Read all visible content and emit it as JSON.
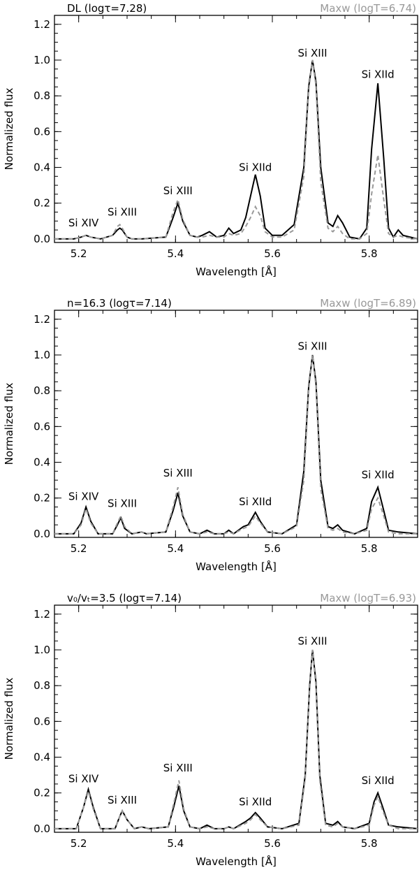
{
  "chart_data": [
    {
      "type": "line",
      "title_left": "DL (logτ=7.28)",
      "title_right": "Maxw (logT=6.74)",
      "xlabel": "Wavelength [Å]",
      "ylabel": "Normalized flux",
      "xlim": [
        5.15,
        5.9
      ],
      "ylim": [
        -0.02,
        1.25
      ],
      "xticks": [
        5.2,
        5.4,
        5.6,
        5.8
      ],
      "xtick_labels": [
        "5.2",
        "5.4",
        "5.6",
        "5.8"
      ],
      "yticks": [
        0.0,
        0.2,
        0.4,
        0.6,
        0.8,
        1.0,
        1.2
      ],
      "ytick_labels": [
        "0.0",
        "0.2",
        "0.4",
        "0.6",
        "0.8",
        "1.0",
        "1.2"
      ],
      "line_labels": [
        {
          "text": "Si XIV",
          "x": 5.21,
          "y": 0.07
        },
        {
          "text": "Si XIII",
          "x": 5.29,
          "y": 0.13
        },
        {
          "text": "Si XIII",
          "x": 5.405,
          "y": 0.25
        },
        {
          "text": "Si XIId",
          "x": 5.565,
          "y": 0.38
        },
        {
          "text": "Si XIII",
          "x": 5.683,
          "y": 1.02
        },
        {
          "text": "Si XIId",
          "x": 5.818,
          "y": 0.9
        }
      ],
      "series": [
        {
          "style": "solid",
          "x": [
            5.15,
            5.19,
            5.205,
            5.215,
            5.225,
            5.245,
            5.27,
            5.28,
            5.285,
            5.29,
            5.3,
            5.31,
            5.33,
            5.38,
            5.395,
            5.405,
            5.415,
            5.43,
            5.445,
            5.455,
            5.47,
            5.485,
            5.5,
            5.51,
            5.52,
            5.535,
            5.545,
            5.555,
            5.565,
            5.575,
            5.585,
            5.6,
            5.62,
            5.645,
            5.665,
            5.675,
            5.683,
            5.69,
            5.7,
            5.715,
            5.725,
            5.735,
            5.745,
            5.76,
            5.78,
            5.795,
            5.805,
            5.818,
            5.83,
            5.84,
            5.85,
            5.86,
            5.87,
            5.9
          ],
          "y": [
            0.0,
            0.0,
            0.01,
            0.02,
            0.01,
            0.0,
            0.02,
            0.05,
            0.06,
            0.05,
            0.01,
            0.0,
            0.0,
            0.01,
            0.12,
            0.2,
            0.1,
            0.02,
            0.01,
            0.02,
            0.04,
            0.01,
            0.02,
            0.06,
            0.03,
            0.05,
            0.12,
            0.24,
            0.36,
            0.24,
            0.06,
            0.02,
            0.02,
            0.08,
            0.4,
            0.85,
            1.0,
            0.88,
            0.4,
            0.09,
            0.07,
            0.13,
            0.09,
            0.01,
            0.0,
            0.06,
            0.5,
            0.87,
            0.45,
            0.06,
            0.01,
            0.05,
            0.02,
            0.0
          ]
        },
        {
          "style": "dashed",
          "x": [
            5.15,
            5.19,
            5.205,
            5.215,
            5.225,
            5.245,
            5.27,
            5.28,
            5.285,
            5.29,
            5.3,
            5.31,
            5.33,
            5.38,
            5.395,
            5.405,
            5.415,
            5.43,
            5.445,
            5.455,
            5.47,
            5.485,
            5.5,
            5.51,
            5.52,
            5.535,
            5.545,
            5.555,
            5.565,
            5.575,
            5.585,
            5.6,
            5.62,
            5.645,
            5.665,
            5.675,
            5.683,
            5.69,
            5.7,
            5.715,
            5.725,
            5.735,
            5.745,
            5.76,
            5.78,
            5.795,
            5.805,
            5.818,
            5.83,
            5.84,
            5.85,
            5.86,
            5.87,
            5.9
          ],
          "y": [
            0.0,
            0.0,
            0.01,
            0.02,
            0.01,
            0.0,
            0.02,
            0.07,
            0.08,
            0.06,
            0.01,
            0.0,
            0.0,
            0.01,
            0.15,
            0.22,
            0.11,
            0.02,
            0.01,
            0.01,
            0.02,
            0.01,
            0.01,
            0.03,
            0.02,
            0.03,
            0.07,
            0.12,
            0.18,
            0.13,
            0.04,
            0.01,
            0.01,
            0.05,
            0.35,
            0.83,
            1.0,
            0.86,
            0.32,
            0.06,
            0.04,
            0.07,
            0.03,
            0.0,
            0.0,
            0.03,
            0.25,
            0.47,
            0.22,
            0.03,
            0.01,
            0.02,
            0.01,
            0.0
          ]
        }
      ]
    },
    {
      "type": "line",
      "title_left": "n=16.3 (logτ=7.14)",
      "title_right": "Maxw (logT=6.89)",
      "xlabel": "Wavelength [Å]",
      "ylabel": "Normalized flux",
      "xlim": [
        5.15,
        5.9
      ],
      "ylim": [
        -0.02,
        1.25
      ],
      "xticks": [
        5.2,
        5.4,
        5.6,
        5.8
      ],
      "xtick_labels": [
        "5.2",
        "5.4",
        "5.6",
        "5.8"
      ],
      "yticks": [
        0.0,
        0.2,
        0.4,
        0.6,
        0.8,
        1.0,
        1.2
      ],
      "ytick_labels": [
        "0.0",
        "0.2",
        "0.4",
        "0.6",
        "0.8",
        "1.0",
        "1.2"
      ],
      "line_labels": [
        {
          "text": "Si XIV",
          "x": 5.21,
          "y": 0.19
        },
        {
          "text": "Si XIII",
          "x": 5.29,
          "y": 0.15
        },
        {
          "text": "Si XIII",
          "x": 5.405,
          "y": 0.32
        },
        {
          "text": "Si XIId",
          "x": 5.565,
          "y": 0.16
        },
        {
          "text": "Si XIII",
          "x": 5.683,
          "y": 1.03
        },
        {
          "text": "Si XIId",
          "x": 5.818,
          "y": 0.31
        }
      ],
      "series": [
        {
          "style": "solid",
          "x": [
            5.15,
            5.19,
            5.205,
            5.215,
            5.225,
            5.24,
            5.27,
            5.28,
            5.287,
            5.295,
            5.31,
            5.33,
            5.34,
            5.38,
            5.395,
            5.405,
            5.415,
            5.43,
            5.45,
            5.465,
            5.48,
            5.5,
            5.51,
            5.52,
            5.54,
            5.55,
            5.565,
            5.575,
            5.59,
            5.62,
            5.65,
            5.665,
            5.675,
            5.683,
            5.69,
            5.7,
            5.715,
            5.725,
            5.735,
            5.745,
            5.77,
            5.795,
            5.805,
            5.818,
            5.83,
            5.84,
            5.86,
            5.9
          ],
          "y": [
            0.0,
            0.0,
            0.06,
            0.15,
            0.07,
            0.0,
            0.0,
            0.05,
            0.09,
            0.03,
            0.0,
            0.01,
            0.0,
            0.01,
            0.13,
            0.23,
            0.1,
            0.01,
            0.0,
            0.02,
            0.0,
            0.0,
            0.02,
            0.0,
            0.04,
            0.05,
            0.12,
            0.07,
            0.01,
            0.0,
            0.05,
            0.35,
            0.82,
            1.0,
            0.85,
            0.3,
            0.04,
            0.03,
            0.05,
            0.02,
            0.0,
            0.03,
            0.18,
            0.26,
            0.13,
            0.02,
            0.01,
            0.0
          ]
        },
        {
          "style": "dashed",
          "x": [
            5.15,
            5.19,
            5.205,
            5.215,
            5.225,
            5.24,
            5.27,
            5.28,
            5.287,
            5.295,
            5.31,
            5.33,
            5.34,
            5.38,
            5.395,
            5.405,
            5.415,
            5.43,
            5.45,
            5.465,
            5.48,
            5.5,
            5.51,
            5.52,
            5.54,
            5.55,
            5.565,
            5.575,
            5.59,
            5.62,
            5.65,
            5.665,
            5.675,
            5.683,
            5.69,
            5.7,
            5.715,
            5.725,
            5.735,
            5.745,
            5.77,
            5.795,
            5.805,
            5.818,
            5.83,
            5.84,
            5.86,
            5.9
          ],
          "y": [
            0.0,
            0.0,
            0.05,
            0.14,
            0.06,
            0.0,
            0.0,
            0.06,
            0.1,
            0.04,
            0.0,
            0.01,
            0.0,
            0.01,
            0.15,
            0.26,
            0.11,
            0.01,
            0.0,
            0.01,
            0.0,
            0.0,
            0.01,
            0.0,
            0.03,
            0.04,
            0.1,
            0.06,
            0.01,
            0.0,
            0.04,
            0.3,
            0.8,
            1.0,
            0.83,
            0.25,
            0.03,
            0.02,
            0.03,
            0.01,
            0.0,
            0.02,
            0.14,
            0.2,
            0.1,
            0.01,
            0.0,
            0.0
          ]
        }
      ]
    },
    {
      "type": "line",
      "title_left": "v₀/vₜ=3.5 (logτ=7.14)",
      "title_right": "Maxw (logT=6.93)",
      "xlabel": "Wavelength [Å]",
      "ylabel": "Normalized flux",
      "xlim": [
        5.15,
        5.9
      ],
      "ylim": [
        -0.02,
        1.25
      ],
      "xticks": [
        5.2,
        5.4,
        5.6,
        5.8
      ],
      "xtick_labels": [
        "5.2",
        "5.4",
        "5.6",
        "5.8"
      ],
      "yticks": [
        0.0,
        0.2,
        0.4,
        0.6,
        0.8,
        1.0,
        1.2
      ],
      "ytick_labels": [
        "0.0",
        "0.2",
        "0.4",
        "0.6",
        "0.8",
        "1.0",
        "1.2"
      ],
      "line_labels": [
        {
          "text": "Si XIV",
          "x": 5.21,
          "y": 0.26
        },
        {
          "text": "Si XIII",
          "x": 5.29,
          "y": 0.14
        },
        {
          "text": "Si XIII",
          "x": 5.405,
          "y": 0.32
        },
        {
          "text": "Si XIId",
          "x": 5.565,
          "y": 0.13
        },
        {
          "text": "Si XIII",
          "x": 5.683,
          "y": 1.03
        },
        {
          "text": "Si XIId",
          "x": 5.818,
          "y": 0.25
        }
      ],
      "series": [
        {
          "style": "solid",
          "x": [
            5.15,
            5.195,
            5.21,
            5.22,
            5.23,
            5.245,
            5.275,
            5.285,
            5.29,
            5.3,
            5.315,
            5.33,
            5.345,
            5.385,
            5.397,
            5.407,
            5.417,
            5.43,
            5.45,
            5.465,
            5.48,
            5.5,
            5.51,
            5.52,
            5.545,
            5.555,
            5.565,
            5.575,
            5.59,
            5.62,
            5.655,
            5.668,
            5.677,
            5.683,
            5.69,
            5.698,
            5.71,
            5.725,
            5.735,
            5.745,
            5.77,
            5.8,
            5.81,
            5.818,
            5.828,
            5.84,
            5.86,
            5.9
          ],
          "y": [
            0.0,
            0.0,
            0.12,
            0.22,
            0.12,
            0.0,
            0.0,
            0.07,
            0.1,
            0.05,
            0.0,
            0.01,
            0.0,
            0.01,
            0.13,
            0.24,
            0.1,
            0.01,
            0.0,
            0.02,
            0.0,
            0.0,
            0.01,
            0.0,
            0.04,
            0.06,
            0.09,
            0.06,
            0.01,
            0.0,
            0.03,
            0.3,
            0.8,
            1.0,
            0.82,
            0.3,
            0.03,
            0.02,
            0.04,
            0.01,
            0.0,
            0.03,
            0.15,
            0.2,
            0.12,
            0.02,
            0.01,
            0.0
          ]
        },
        {
          "style": "dashed",
          "x": [
            5.15,
            5.195,
            5.21,
            5.22,
            5.23,
            5.245,
            5.275,
            5.285,
            5.29,
            5.3,
            5.315,
            5.33,
            5.345,
            5.385,
            5.397,
            5.407,
            5.417,
            5.43,
            5.45,
            5.465,
            5.48,
            5.5,
            5.51,
            5.52,
            5.545,
            5.555,
            5.565,
            5.575,
            5.59,
            5.62,
            5.655,
            5.668,
            5.677,
            5.683,
            5.69,
            5.698,
            5.71,
            5.725,
            5.735,
            5.745,
            5.77,
            5.8,
            5.81,
            5.818,
            5.828,
            5.84,
            5.86,
            5.9
          ],
          "y": [
            0.0,
            0.0,
            0.12,
            0.21,
            0.11,
            0.0,
            0.0,
            0.07,
            0.1,
            0.05,
            0.0,
            0.01,
            0.0,
            0.01,
            0.15,
            0.27,
            0.11,
            0.01,
            0.0,
            0.01,
            0.0,
            0.0,
            0.01,
            0.0,
            0.03,
            0.05,
            0.08,
            0.05,
            0.01,
            0.0,
            0.02,
            0.28,
            0.78,
            1.0,
            0.8,
            0.27,
            0.02,
            0.01,
            0.03,
            0.01,
            0.0,
            0.02,
            0.13,
            0.18,
            0.1,
            0.02,
            0.0,
            0.0
          ]
        }
      ]
    }
  ]
}
